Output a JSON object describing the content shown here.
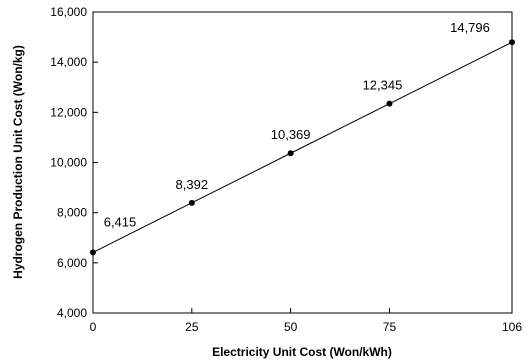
{
  "chart_data": {
    "type": "line",
    "xlabel": "Electricity Unit Cost (Won/kWh)",
    "ylabel": "Hydrogen Production Unit Cost (Won/kg)",
    "x": [
      0,
      25,
      50,
      75,
      106
    ],
    "series": [
      {
        "values": [
          6415,
          8392,
          10369,
          12345,
          14796
        ]
      }
    ],
    "data_labels": [
      "6,415",
      "8,392",
      "10,369",
      "12,345",
      "14,796"
    ],
    "xticks": [
      0,
      25,
      50,
      75,
      106
    ],
    "xtick_labels": [
      "0",
      "25",
      "50",
      "75",
      "106"
    ],
    "yticks": [
      4000,
      6000,
      8000,
      10000,
      12000,
      14000,
      16000
    ],
    "ytick_labels": [
      "4,000",
      "6,000",
      "8,000",
      "10,000",
      "12,000",
      "14,000",
      "16,000"
    ],
    "ylim": [
      4000,
      16000
    ],
    "xlim": [
      0,
      106
    ],
    "grid": false,
    "legend": "none",
    "colors": {
      "line": "#000000",
      "axis": "#000000"
    }
  }
}
